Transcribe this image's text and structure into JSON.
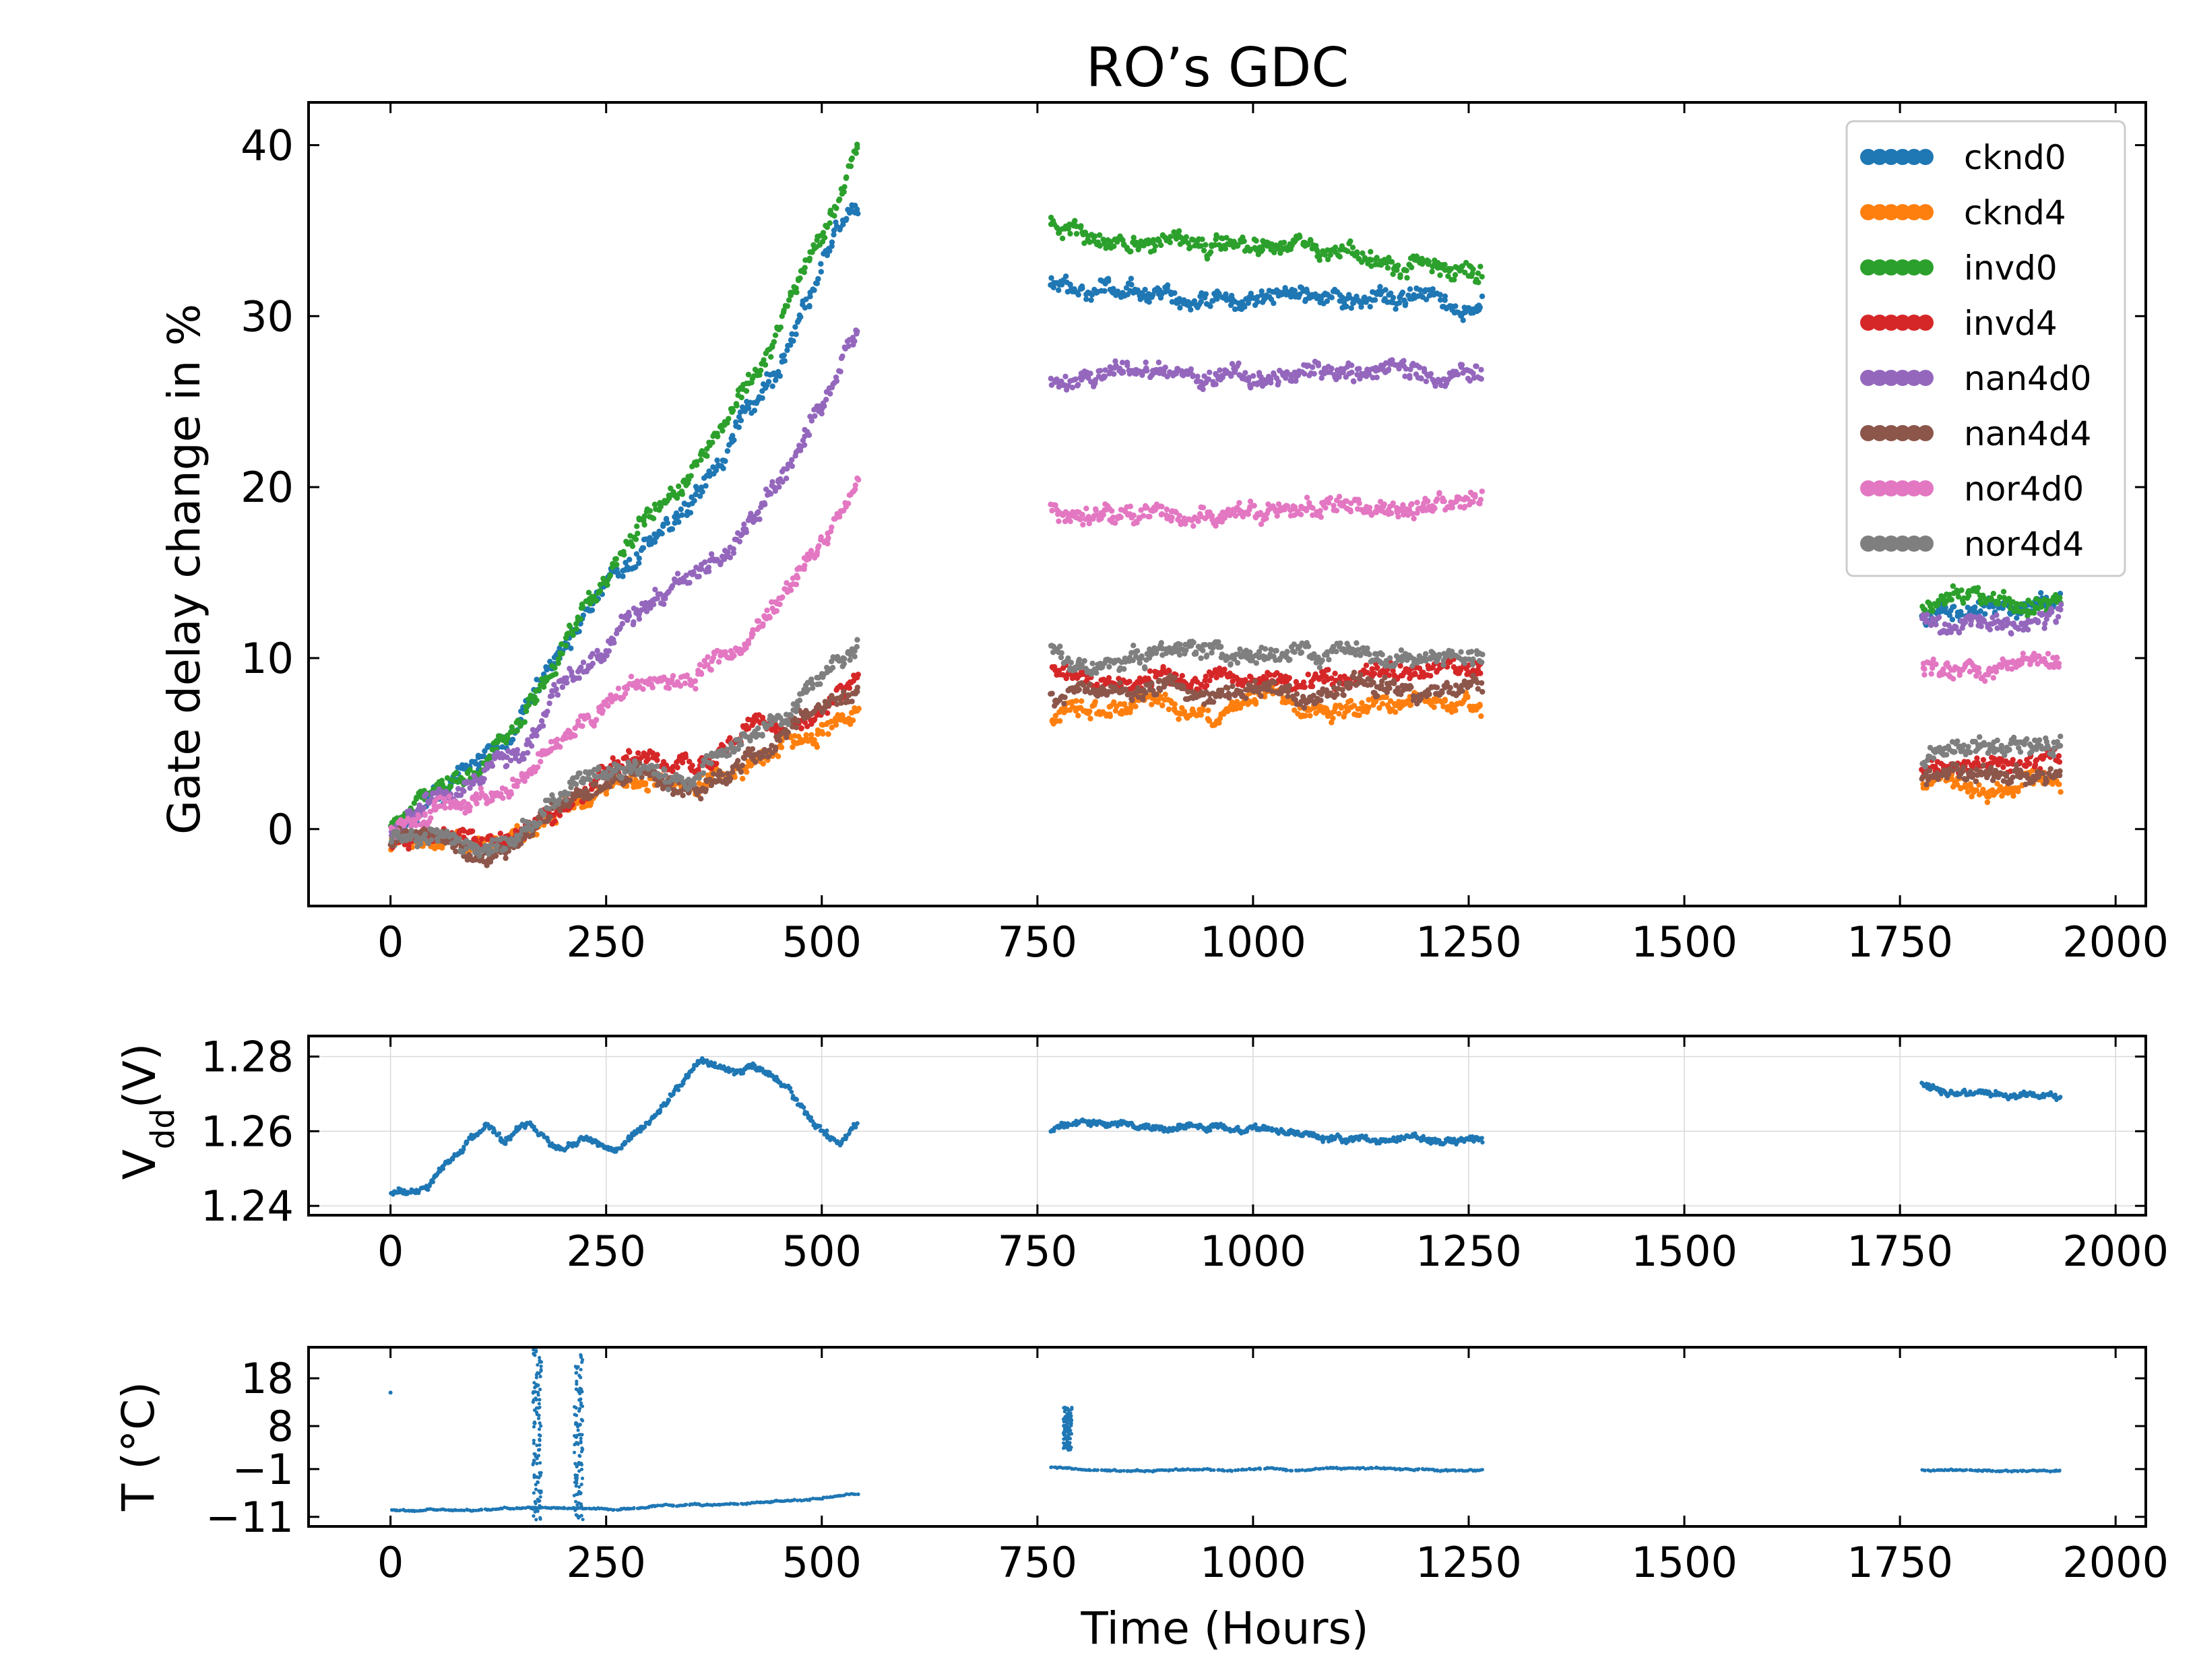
{
  "chart_data": [
    {
      "id": "gdc",
      "type": "scatter",
      "title": "RO’s GDC",
      "xlabel": "",
      "ylabel": "Gate delay change in %",
      "xlim": [
        -95,
        2035
      ],
      "ylim": [
        -4.5,
        42.5
      ],
      "xticks": [
        0,
        250,
        500,
        750,
        1000,
        1250,
        1500,
        1750,
        2000
      ],
      "yticks": [
        0,
        10,
        20,
        30,
        40
      ],
      "grid": false,
      "legend_position": "top-right",
      "segments": [
        [
          0,
          540
        ],
        [
          765,
          1265
        ],
        [
          1775,
          1935
        ]
      ],
      "series": [
        {
          "name": "cknd0",
          "color": "#1f77b4",
          "levels": [
            [
              0,
              -1
            ],
            [
              50,
              2.5
            ],
            [
              100,
              3.5
            ],
            [
              150,
              6
            ],
            [
              200,
              11
            ],
            [
              250,
              14
            ],
            [
              300,
              17
            ],
            [
              350,
              19
            ],
            [
              400,
              23
            ],
            [
              450,
              27
            ],
            [
              500,
              33
            ],
            [
              540,
              36.5
            ],
            [
              765,
              32
            ],
            [
              1000,
              31.3
            ],
            [
              1265,
              30.8
            ],
            [
              1775,
              12.5
            ],
            [
              1935,
              13.5
            ]
          ]
        },
        {
          "name": "cknd4",
          "color": "#ff7f0e",
          "levels": [
            [
              0,
              -1
            ],
            [
              50,
              -1
            ],
            [
              100,
              -1.5
            ],
            [
              150,
              -0.5
            ],
            [
              200,
              1
            ],
            [
              250,
              2.5
            ],
            [
              300,
              3
            ],
            [
              350,
              2
            ],
            [
              400,
              3.5
            ],
            [
              450,
              5
            ],
            [
              500,
              6
            ],
            [
              540,
              7.5
            ],
            [
              765,
              6.8
            ],
            [
              1000,
              7.1
            ],
            [
              1265,
              7.2
            ],
            [
              1775,
              2.7
            ],
            [
              1935,
              2.9
            ]
          ]
        },
        {
          "name": "invd0",
          "color": "#2ca02c",
          "levels": [
            [
              0,
              0
            ],
            [
              50,
              3
            ],
            [
              100,
              3.5
            ],
            [
              150,
              7
            ],
            [
              200,
              11
            ],
            [
              250,
              15
            ],
            [
              300,
              18
            ],
            [
              350,
              21
            ],
            [
              400,
              25
            ],
            [
              450,
              29
            ],
            [
              500,
              35
            ],
            [
              540,
              39.5
            ],
            [
              765,
              35
            ],
            [
              1000,
              34
            ],
            [
              1265,
              33.3
            ],
            [
              1775,
              13.5
            ],
            [
              1935,
              14
            ]
          ]
        },
        {
          "name": "invd4",
          "color": "#d62728",
          "levels": [
            [
              0,
              -1
            ],
            [
              50,
              -0.5
            ],
            [
              100,
              -1
            ],
            [
              150,
              0
            ],
            [
              200,
              1.5
            ],
            [
              250,
              3.5
            ],
            [
              300,
              4
            ],
            [
              350,
              3.5
            ],
            [
              400,
              5
            ],
            [
              450,
              6
            ],
            [
              500,
              7
            ],
            [
              540,
              8.5
            ],
            [
              765,
              8.6
            ],
            [
              1000,
              9
            ],
            [
              1265,
              9.2
            ],
            [
              1775,
              3.5
            ],
            [
              1935,
              3.9
            ]
          ]
        },
        {
          "name": "nan4d0",
          "color": "#9467bd",
          "levels": [
            [
              0,
              -0.5
            ],
            [
              50,
              2
            ],
            [
              100,
              2.5
            ],
            [
              150,
              5
            ],
            [
              200,
              9
            ],
            [
              250,
              11
            ],
            [
              300,
              13
            ],
            [
              350,
              15
            ],
            [
              400,
              17
            ],
            [
              450,
              20
            ],
            [
              500,
              25
            ],
            [
              540,
              29.5
            ],
            [
              765,
              26.5
            ],
            [
              1000,
              26.5
            ],
            [
              1265,
              26.2
            ],
            [
              1775,
              11.8
            ],
            [
              1935,
              12.3
            ]
          ]
        },
        {
          "name": "nan4d4",
          "color": "#8c564b",
          "levels": [
            [
              0,
              -1
            ],
            [
              50,
              -0.5
            ],
            [
              100,
              -1
            ],
            [
              150,
              -0.5
            ],
            [
              200,
              1.5
            ],
            [
              250,
              3
            ],
            [
              300,
              3
            ],
            [
              350,
              2
            ],
            [
              400,
              4
            ],
            [
              450,
              5
            ],
            [
              500,
              6.5
            ],
            [
              540,
              8
            ],
            [
              765,
              7.5
            ],
            [
              1000,
              8
            ],
            [
              1265,
              8.2
            ],
            [
              1775,
              3
            ],
            [
              1935,
              3.3
            ]
          ]
        },
        {
          "name": "nor4d0",
          "color": "#e377c2",
          "levels": [
            [
              0,
              -0.5
            ],
            [
              50,
              1
            ],
            [
              100,
              1.5
            ],
            [
              150,
              3.5
            ],
            [
              200,
              5.5
            ],
            [
              250,
              7
            ],
            [
              300,
              8
            ],
            [
              350,
              8.5
            ],
            [
              400,
              11
            ],
            [
              450,
              13
            ],
            [
              500,
              17
            ],
            [
              540,
              20
            ],
            [
              765,
              18.5
            ],
            [
              1000,
              18.6
            ],
            [
              1265,
              18.8
            ],
            [
              1775,
              9
            ],
            [
              1935,
              9.5
            ]
          ]
        },
        {
          "name": "nor4d4",
          "color": "#7f7f7f",
          "levels": [
            [
              0,
              -1
            ],
            [
              50,
              -0.5
            ],
            [
              100,
              -1.5
            ],
            [
              150,
              0
            ],
            [
              200,
              2
            ],
            [
              250,
              3.5
            ],
            [
              300,
              3.5
            ],
            [
              350,
              2.5
            ],
            [
              400,
              5
            ],
            [
              450,
              6.5
            ],
            [
              500,
              9
            ],
            [
              540,
              10.5
            ],
            [
              765,
              10
            ],
            [
              1000,
              10.3
            ],
            [
              1265,
              10.6
            ],
            [
              1775,
              4.3
            ],
            [
              1935,
              5
            ]
          ]
        }
      ]
    },
    {
      "id": "vdd",
      "type": "scatter",
      "ylabel": "Vdd(V)",
      "ylabel_main": "V",
      "ylabel_sub": "dd",
      "ylabel_unit": "(V)",
      "xlim": [
        -95,
        2035
      ],
      "ylim": [
        1.2375,
        1.2855
      ],
      "xticks": [
        0,
        250,
        500,
        750,
        1000,
        1250,
        1500,
        1750,
        2000
      ],
      "yticks": [
        1.24,
        1.26,
        1.28
      ],
      "ytick_labels": [
        "1.24",
        "1.26",
        "1.28"
      ],
      "grid": true,
      "segments": [
        [
          0,
          540
        ],
        [
          765,
          1265
        ],
        [
          1775,
          1935
        ]
      ],
      "series": [
        {
          "name": "Vdd",
          "color": "#1f77b4",
          "levels": [
            [
              0,
              1.2435
            ],
            [
              40,
              1.2445
            ],
            [
              90,
              1.258
            ],
            [
              110,
              1.262
            ],
            [
              130,
              1.257
            ],
            [
              160,
              1.2625
            ],
            [
              190,
              1.255
            ],
            [
              220,
              1.2585
            ],
            [
              260,
              1.2545
            ],
            [
              300,
              1.262
            ],
            [
              340,
              1.2725
            ],
            [
              360,
              1.2795
            ],
            [
              400,
              1.276
            ],
            [
              420,
              1.278
            ],
            [
              460,
              1.271
            ],
            [
              490,
              1.262
            ],
            [
              520,
              1.257
            ],
            [
              540,
              1.262
            ],
            [
              765,
              1.2605
            ],
            [
              800,
              1.2625
            ],
            [
              900,
              1.2605
            ],
            [
              1000,
              1.2605
            ],
            [
              1100,
              1.258
            ],
            [
              1200,
              1.258
            ],
            [
              1265,
              1.257
            ],
            [
              1775,
              1.272
            ],
            [
              1800,
              1.2695
            ],
            [
              1935,
              1.2695
            ]
          ]
        }
      ]
    },
    {
      "id": "temp",
      "type": "scatter",
      "ylabel": "T (°C)",
      "xlabel": "Time (Hours)",
      "xlim": [
        -95,
        2035
      ],
      "ylim": [
        -13,
        24.5
      ],
      "xticks": [
        0,
        250,
        500,
        750,
        1000,
        1250,
        1500,
        1750,
        2000
      ],
      "yticks": [
        -11,
        -1,
        8,
        18
      ],
      "ytick_labels": [
        "−11",
        "−1",
        "8",
        "18"
      ],
      "grid": false,
      "segments": [
        [
          0,
          540
        ],
        [
          765,
          1265
        ],
        [
          1775,
          1935
        ]
      ],
      "series": [
        {
          "name": "T",
          "color": "#1f77b4",
          "levels": [
            [
              0,
              -9.5
            ],
            [
              100,
              -9.5
            ],
            [
              200,
              -9.3
            ],
            [
              300,
              -9
            ],
            [
              400,
              -8.2
            ],
            [
              500,
              -7.2
            ],
            [
              540,
              -6
            ],
            [
              765,
              -0.5
            ],
            [
              800,
              -1
            ],
            [
              900,
              -1.2
            ],
            [
              1000,
              -1
            ],
            [
              1100,
              -1
            ],
            [
              1200,
              -1.1
            ],
            [
              1265,
              -1.3
            ],
            [
              1775,
              -1.2
            ],
            [
              1935,
              -1.5
            ]
          ]
        }
      ]
    }
  ]
}
